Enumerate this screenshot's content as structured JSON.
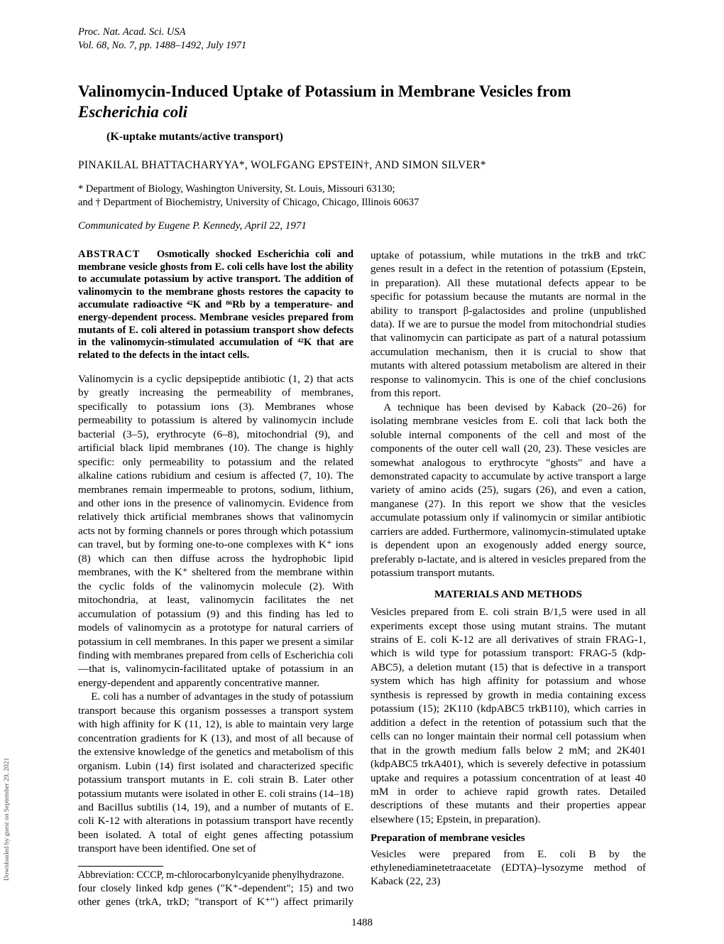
{
  "header": {
    "line1": "Proc. Nat. Acad. Sci. USA",
    "line2": "Vol. 68, No. 7, pp. 1488–1492, July 1971"
  },
  "title_plain_pre": "Valinomycin-Induced Uptake of Potassium in Membrane Vesicles from ",
  "title_ital": "Escherichia coli",
  "subtitle": "(K-uptake mutants/active transport)",
  "authors": "PINAKILAL BHATTACHARYYA*, WOLFGANG EPSTEIN†, AND SIMON SILVER*",
  "affiliations": "* Department of Biology, Washington University, St. Louis, Missouri 63130;\nand † Department of Biochemistry, University of Chicago, Chicago, Illinois 60637",
  "communicated": "Communicated by Eugene P. Kennedy, April 22, 1971",
  "abstract_lead": "ABSTRACT",
  "abstract_body": "Osmotically shocked Escherichia coli and membrane vesicle ghosts from E. coli cells have lost the ability to accumulate potassium by active transport. The addition of valinomycin to the membrane ghosts restores the capacity to accumulate radioactive ⁴²K and ⁸⁶Rb by a temperature- and energy-dependent process. Membrane vesicles prepared from mutants of E. coli altered in potassium transport show defects in the valinomycin-stimulated accumulation of ⁴²K that are related to the defects in the intact cells.",
  "para1": "Valinomycin is a cyclic depsipeptide antibiotic (1, 2) that acts by greatly increasing the permeability of membranes, specifically to potassium ions (3). Membranes whose permeability to potassium is altered by valinomycin include bacterial (3–5), erythrocyte (6–8), mitochondrial (9), and artificial black lipid membranes (10). The change is highly specific: only permeability to potassium and the related alkaline cations rubidium and cesium is affected (7, 10). The membranes remain impermeable to protons, sodium, lithium, and other ions in the presence of valinomycin. Evidence from relatively thick artificial membranes shows that valinomycin acts not by forming channels or pores through which potassium can travel, but by forming one-to-one complexes with K⁺ ions (8) which can then diffuse across the hydrophobic lipid membranes, with the K⁺ sheltered from the membrane within the cyclic folds of the valinomycin molecule (2). With mitochondria, at least, valinomycin facilitates the net accumulation of potassium (9) and this finding has led to models of valinomycin as a prototype for natural carriers of potassium in cell membranes. In this paper we present a similar finding with membranes prepared from cells of Escherichia coli—that is, valinomycin-facilitated uptake of potassium in an energy-dependent and apparently concentrative manner.",
  "para2": "E. coli has a number of advantages in the study of potassium transport because this organism possesses a transport system with high affinity for K (11, 12), is able to maintain very large concentration gradients for K (13), and most of all because of the extensive knowledge of the genetics and metabolism of this organism. Lubin (14) first isolated and characterized specific potassium transport mutants in E. coli strain B. Later other potassium mutants were isolated in other E. coli strains (14–18) and Bacillus subtilis (14, 19), and a number of mutants of E. coli K-12 with alterations in potassium transport have recently been isolated. A total of eight genes affecting potassium transport have been identified. One set of",
  "para3": "four closely linked kdp genes (\"K⁺-dependent\"; 15) and two other genes (trkA, trkD; \"transport of K⁺\") affect primarily uptake of potassium, while mutations in the trkB and trkC genes result in a defect in the retention of potassium (Epstein, in preparation). All these mutational defects appear to be specific for potassium because the mutants are normal in the ability to transport β-galactosides and proline (unpublished data). If we are to pursue the model from mitochondrial studies that valinomycin can participate as part of a natural potassium accumulation mechanism, then it is crucial to show that mutants with altered potassium metabolism are altered in their response to valinomycin. This is one of the chief conclusions from this report.",
  "para4": "A technique has been devised by Kaback (20–26) for isolating membrane vesicles from E. coli that lack both the soluble internal components of the cell and most of the components of the outer cell wall (20, 23). These vesicles are somewhat analogous to erythrocyte \"ghosts\" and have a demonstrated capacity to accumulate by active transport a large variety of amino acids (25), sugars (26), and even a cation, manganese (27). In this report we show that the vesicles accumulate potassium only if valinomycin or similar antibiotic carriers are added. Furthermore, valinomycin-stimulated uptake is dependent upon an exogenously added energy source, preferably ᴅ-lactate, and is altered in vesicles prepared from the potassium transport mutants.",
  "methods_head": "MATERIALS AND METHODS",
  "para5": "Vesicles prepared from E. coli strain B/1,5 were used in all experiments except those using mutant strains. The mutant strains of E. coli K-12 are all derivatives of strain FRAG-1, which is wild type for potassium transport: FRAG-5 (kdp-ABC5), a deletion mutant (15) that is defective in a transport system which has high affinity for potassium and whose synthesis is repressed by growth in media containing excess potassium (15); 2K110 (kdpABC5 trkB110), which carries in addition a defect in the retention of potassium such that the cells can no longer maintain their normal cell potassium when that in the growth medium falls below 2 mM; and 2K401 (kdpABC5 trkA401), which is severely defective in potassium uptake and requires a potassium concentration of at least 40 mM in order to achieve rapid growth rates. Detailed descriptions of these mutants and their properties appear elsewhere (15; Epstein, in preparation).",
  "prep_head": "Preparation of membrane vesicles",
  "para6": "Vesicles were prepared from E. coli B by the ethylenediaminetetraacetate (EDTA)–lysozyme method of Kaback (22, 23)",
  "footnote": "Abbreviation: CCCP, m-chlorocarbonylcyanide phenylhydrazone.",
  "pagenum": "1488",
  "sidenote": "Downloaded by guest on September 29, 2021"
}
